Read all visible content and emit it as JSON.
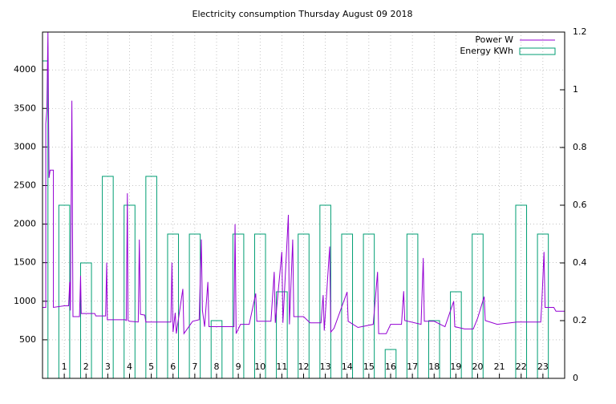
{
  "chart_data": {
    "type": "line-boxes",
    "title": "Electricity consumption Thursday August 09 2018",
    "xlim": [
      0,
      24
    ],
    "xticks": [
      1,
      2,
      3,
      4,
      5,
      6,
      7,
      8,
      9,
      10,
      11,
      12,
      13,
      14,
      15,
      16,
      17,
      18,
      19,
      20,
      21,
      22,
      23
    ],
    "ylim": [
      0,
      4490
    ],
    "yticks": [
      500,
      1000,
      1500,
      2000,
      2500,
      3000,
      3500,
      4000
    ],
    "y2lim": [
      0,
      1.2
    ],
    "y2ticks": [
      0,
      0.2,
      0.4,
      0.6,
      0.8,
      1,
      1.2
    ],
    "grid": true,
    "legend": "top-right",
    "series": [
      {
        "name": "Power W",
        "color": "#9400d3",
        "type": "line",
        "x": [
          0,
          0.15,
          0.15,
          0.2,
          0.25,
          0.3,
          0.35,
          0.5,
          0.5,
          1.0,
          1.2,
          1.25,
          1.28,
          1.35,
          1.4,
          1.7,
          1.75,
          1.78,
          2.4,
          2.45,
          2.9,
          2.95,
          2.98,
          3.8,
          3.85,
          3.9,
          3.93,
          4.0,
          4.4,
          4.45,
          4.5,
          4.7,
          4.75,
          5.9,
          5.95,
          6.0,
          6.1,
          6.15,
          6.45,
          6.5,
          6.9,
          7.2,
          7.3,
          7.35,
          7.45,
          7.6,
          7.65,
          8.8,
          8.85,
          8.9,
          9.1,
          9.5,
          9.8,
          9.85,
          10.5,
          10.65,
          10.7,
          11.0,
          11.05,
          11.3,
          11.35,
          11.5,
          11.55,
          12.0,
          12.3,
          12.8,
          12.9,
          12.95,
          13.2,
          13.25,
          13.4,
          14.0,
          14.05,
          14.5,
          15.2,
          15.4,
          15.45,
          15.8,
          16.0,
          16.5,
          16.6,
          16.65,
          17.4,
          17.5,
          17.55,
          18.0,
          18.5,
          18.9,
          18.95,
          19.4,
          19.8,
          20.0,
          20.3,
          20.35,
          20.9,
          21.5,
          21.8,
          22.0,
          22.9,
          22.95,
          23.05,
          23.1,
          23.5,
          23.6,
          24
        ],
        "values": [
          920,
          920,
          3300,
          3480,
          4490,
          2600,
          2700,
          2700,
          920,
          940,
          940,
          1250,
          880,
          3600,
          800,
          800,
          1330,
          840,
          840,
          810,
          810,
          1500,
          760,
          760,
          750,
          2400,
          750,
          740,
          730,
          1800,
          830,
          820,
          730,
          730,
          1500,
          600,
          850,
          580,
          1160,
          580,
          740,
          760,
          1800,
          880,
          670,
          1250,
          670,
          670,
          2000,
          580,
          700,
          700,
          1100,
          740,
          740,
          1380,
          720,
          1640,
          720,
          2120,
          700,
          1800,
          800,
          800,
          720,
          720,
          1080,
          620,
          1710,
          600,
          650,
          1120,
          740,
          660,
          700,
          1380,
          580,
          580,
          700,
          700,
          1130,
          750,
          700,
          1560,
          740,
          740,
          670,
          1000,
          670,
          640,
          640,
          780,
          1060,
          750,
          700,
          720,
          730,
          730,
          730,
          980,
          1640,
          920,
          920,
          870,
          870
        ]
      },
      {
        "name": "Energy KWh",
        "color": "#009e73",
        "type": "boxes",
        "axis": "y2",
        "x": [
          0,
          1,
          2,
          3,
          4,
          5,
          6,
          7,
          8,
          9,
          10,
          11,
          12,
          13,
          14,
          15,
          16,
          17,
          18,
          19,
          20,
          21,
          22,
          23
        ],
        "values": [
          1.1,
          0.6,
          0.4,
          0.7,
          0.6,
          0.7,
          0.5,
          0.5,
          0.2,
          0.5,
          0.5,
          0.3,
          0.5,
          0.6,
          0.5,
          0.5,
          0.1,
          0.5,
          0.2,
          0.3,
          0.5,
          0,
          0.6,
          0.5
        ]
      }
    ]
  }
}
